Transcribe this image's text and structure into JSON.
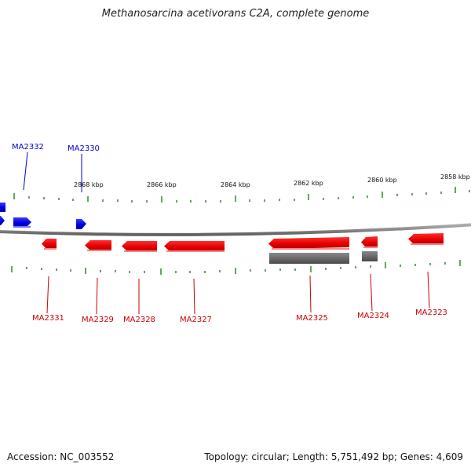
{
  "title": "Methanosarcina acetivorans C2A, complete genome",
  "footer": {
    "accession": "Accession: NC_003552",
    "summary": "Topology: circular; Length: 5,751,492 bp; Genes: 4,609"
  },
  "colors": {
    "forward": "#0000ee",
    "reverse": "#ee0000",
    "other": "#6a6a6a",
    "tick": "#2a8a2a",
    "backbone": "#8a8a8a"
  },
  "scale_labels": [
    "2868 kbp",
    "2866 kbp",
    "2864 kbp",
    "2862 kbp",
    "2860 kbp",
    "2858 kbp"
  ],
  "forward_labels": [
    "MA2332",
    "MA2330"
  ],
  "reverse_labels": [
    "MA2331",
    "MA2329",
    "MA2328",
    "MA2327",
    "MA2325",
    "MA2324",
    "MA2323"
  ]
}
